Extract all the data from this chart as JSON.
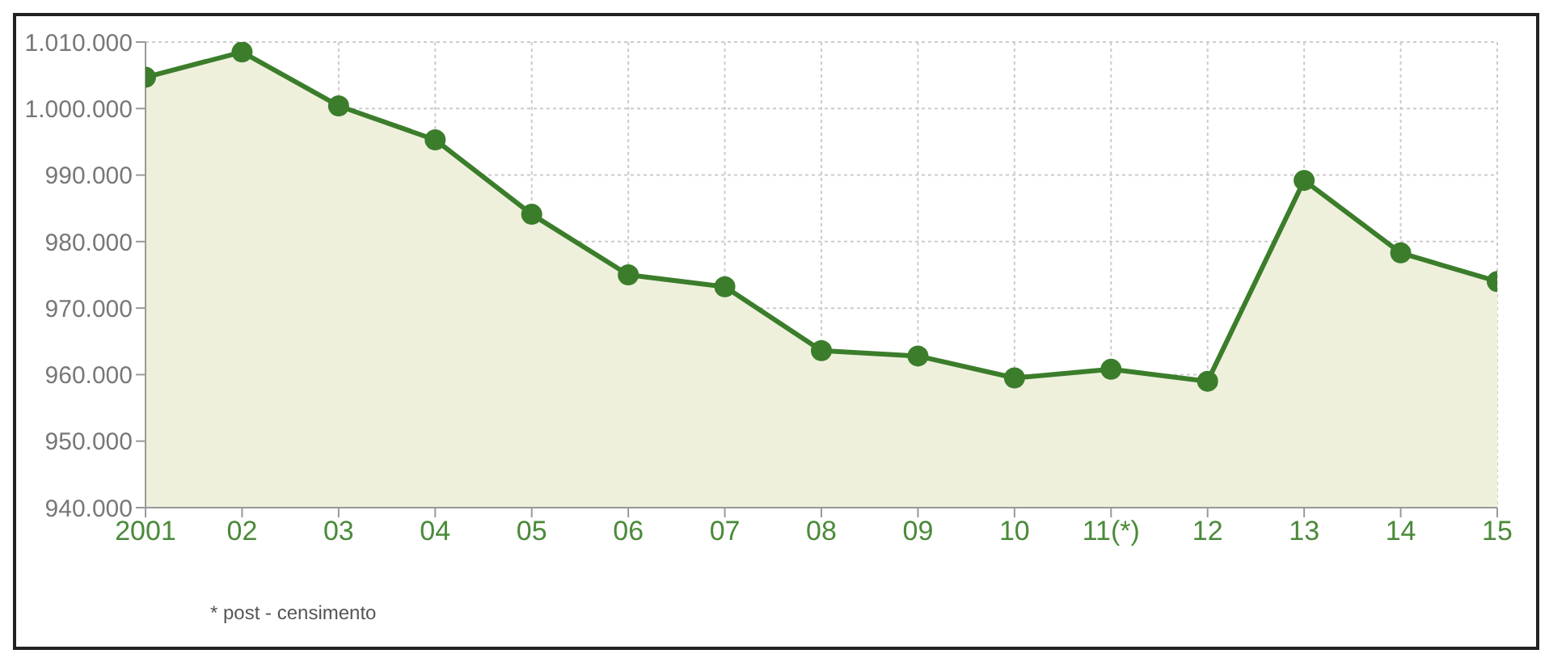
{
  "chart_data": {
    "type": "area",
    "categories": [
      "2001",
      "02",
      "03",
      "04",
      "05",
      "06",
      "07",
      "08",
      "09",
      "10",
      "11(*)",
      "12",
      "13",
      "14",
      "15"
    ],
    "series": [
      {
        "color": "#3b7d2b",
        "values": [
          1004700,
          1008500,
          1000400,
          995300,
          984100,
          975000,
          973200,
          963600,
          962800,
          959500,
          960800,
          959000,
          989200,
          978300,
          974000
        ]
      }
    ],
    "ylim": [
      940000,
      1010000
    ],
    "yticks": [
      {
        "value": 940000,
        "label": "940.000"
      },
      {
        "value": 950000,
        "label": "950.000"
      },
      {
        "value": 960000,
        "label": "960.000"
      },
      {
        "value": 970000,
        "label": "970.000"
      },
      {
        "value": 980000,
        "label": "980.000"
      },
      {
        "value": 990000,
        "label": "990.000"
      },
      {
        "value": 1000000,
        "label": "1.000.000"
      },
      {
        "value": 1010000,
        "label": "1.010.000"
      }
    ],
    "grid": true,
    "marker": "circle",
    "line_style": "solid",
    "annotations": [
      "* post - censimento"
    ]
  }
}
